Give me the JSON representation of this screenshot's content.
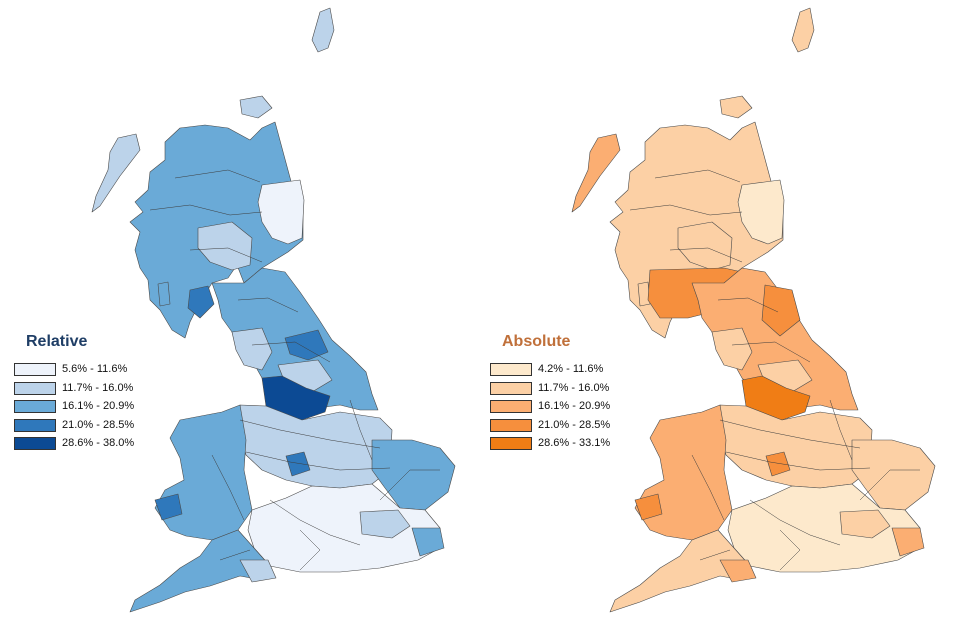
{
  "maps": [
    {
      "title": "Relative",
      "title_color": "#1f3e66",
      "legend": [
        {
          "label": "5.6% - 11.6%",
          "color": "#eef3fb"
        },
        {
          "label": "11.7% - 16.0%",
          "color": "#bcd3ea"
        },
        {
          "label": "16.1% - 20.9%",
          "color": "#6aaad7"
        },
        {
          "label": "21.0% - 28.5%",
          "color": "#2f78bb"
        },
        {
          "label": "28.6% - 38.0%",
          "color": "#0c4a94"
        }
      ]
    },
    {
      "title": "Absolute",
      "title_color": "#c0703a",
      "legend": [
        {
          "label": "4.2% - 11.6%",
          "color": "#fde9cc"
        },
        {
          "label": "11.7% - 16.0%",
          "color": "#fcd0a5"
        },
        {
          "label": "16.1% - 20.9%",
          "color": "#fbae72"
        },
        {
          "label": "21.0% - 28.5%",
          "color": "#f68f3d"
        },
        {
          "label": "28.6% - 33.1%",
          "color": "#f07d15"
        }
      ]
    }
  ]
}
